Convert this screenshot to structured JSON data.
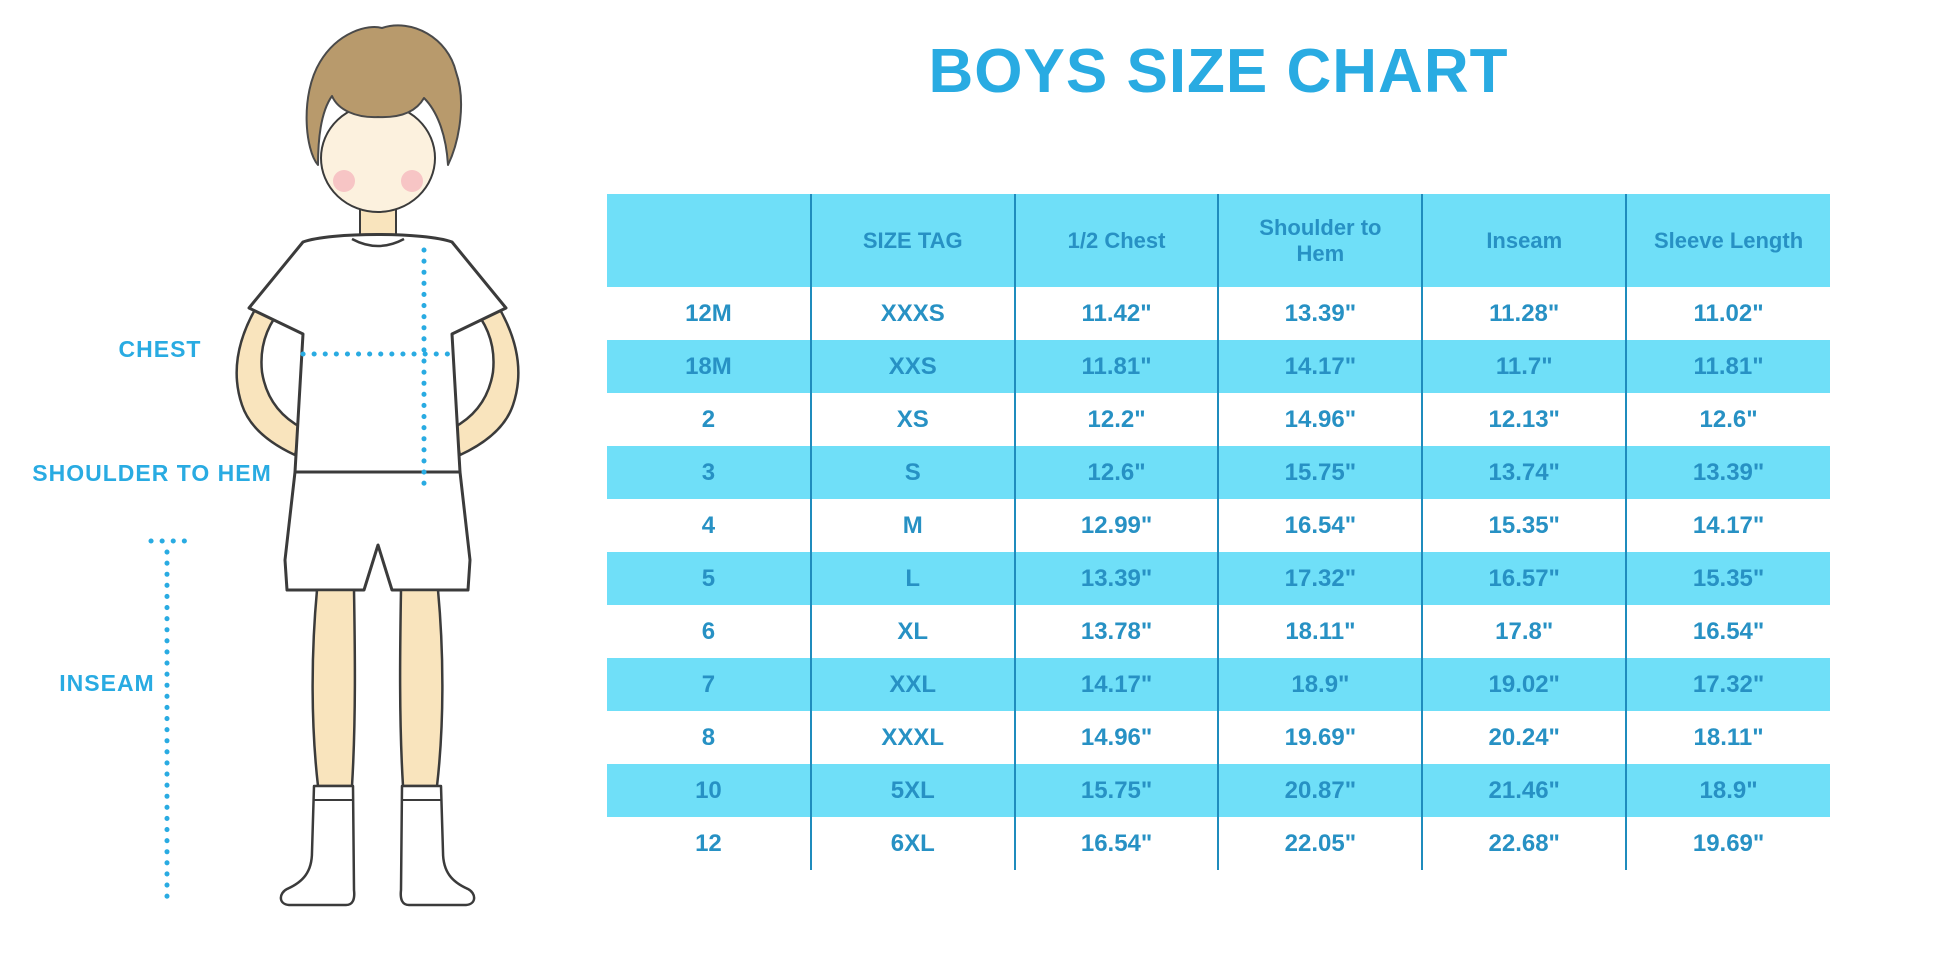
{
  "title": "BOYS SIZE CHART",
  "diagram_labels": {
    "chest": "CHEST",
    "shoulder_to_hem": "SHOULDER TO HEM",
    "inseam": "INSEAM"
  },
  "colors": {
    "accent_blue": "#29ABE2",
    "stripe_cyan": "#6FDFF8",
    "table_text_blue": "#2791C4",
    "divider_blue": "#1F8CBD",
    "skin": "#F9E4BD",
    "hair_brown": "#B89A6C"
  },
  "chart_data": {
    "type": "table",
    "title": "BOYS SIZE CHART",
    "columns": [
      "",
      "SIZE TAG",
      "1/2 Chest",
      "Shoulder to Hem",
      "Inseam",
      "Sleeve Length"
    ],
    "rows": [
      [
        "12M",
        "XXXS",
        "11.42\"",
        "13.39\"",
        "11.28\"",
        "11.02\""
      ],
      [
        "18M",
        "XXS",
        "11.81\"",
        "14.17\"",
        "11.7\"",
        "11.81\""
      ],
      [
        "2",
        "XS",
        "12.2\"",
        "14.96\"",
        "12.13\"",
        "12.6\""
      ],
      [
        "3",
        "S",
        "12.6\"",
        "15.75\"",
        "13.74\"",
        "13.39\""
      ],
      [
        "4",
        "M",
        "12.99\"",
        "16.54\"",
        "15.35\"",
        "14.17\""
      ],
      [
        "5",
        "L",
        "13.39\"",
        "17.32\"",
        "16.57\"",
        "15.35\""
      ],
      [
        "6",
        "XL",
        "13.78\"",
        "18.11\"",
        "17.8\"",
        "16.54\""
      ],
      [
        "7",
        "XXL",
        "14.17\"",
        "18.9\"",
        "19.02\"",
        "17.32\""
      ],
      [
        "8",
        "XXXL",
        "14.96\"",
        "19.69\"",
        "20.24\"",
        "18.11\""
      ],
      [
        "10",
        "5XL",
        "15.75\"",
        "20.87\"",
        "21.46\"",
        "18.9\""
      ],
      [
        "12",
        "6XL",
        "16.54\"",
        "22.05\"",
        "22.68\"",
        "19.69\""
      ]
    ],
    "row_striping": "white / light-cyan alternating, header light-cyan",
    "units": "inches"
  }
}
